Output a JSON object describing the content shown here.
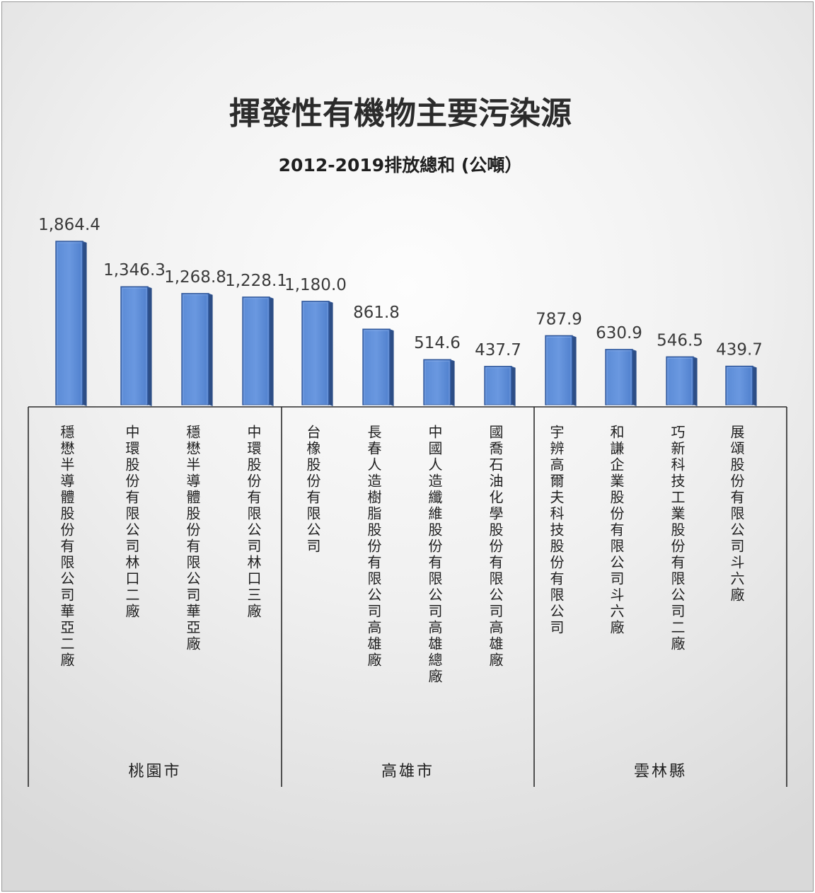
{
  "chart_data": {
    "type": "bar",
    "title": "揮發性有機物主要污染源",
    "subtitle": "2012-2019排放總和 (公噸）",
    "categories": [
      "穩懋半導體股份有限公司華亞二廠",
      "中環股份有限公司林口二廠",
      "穩懋半導體股份有限公司華亞廠",
      "中環股份有限公司林口三廠",
      "台橡股份有限公司",
      "長春人造樹脂股份有限公司高雄廠",
      "中國人造纖維股份有限公司高雄總廠",
      "國喬石油化學股份有限公司高雄廠",
      "宇辨高爾夫科技股份有限公司",
      "和謙企業股份有限公司斗六廠",
      "巧新科技工業股份有限公司二廠",
      "展頌股份有限公司斗六廠"
    ],
    "values": [
      1864.4,
      1346.3,
      1268.8,
      1228.1,
      1180.0,
      861.8,
      514.6,
      437.7,
      787.9,
      630.9,
      546.5,
      439.7
    ],
    "value_labels": [
      "1,864.4",
      "1,346.3",
      "1,268.8",
      "1,228.1",
      "1,180.0",
      "861.8",
      "514.6",
      "437.7",
      "787.9",
      "630.9",
      "546.5",
      "439.7"
    ],
    "groups": [
      {
        "name": "桃園市",
        "count": 4
      },
      {
        "name": "高雄市",
        "count": 4
      },
      {
        "name": "雲林縣",
        "count": 4
      }
    ],
    "ylim": [
      0,
      1900
    ],
    "grid": false,
    "legend": "none",
    "bar_color": "#4472C4"
  }
}
